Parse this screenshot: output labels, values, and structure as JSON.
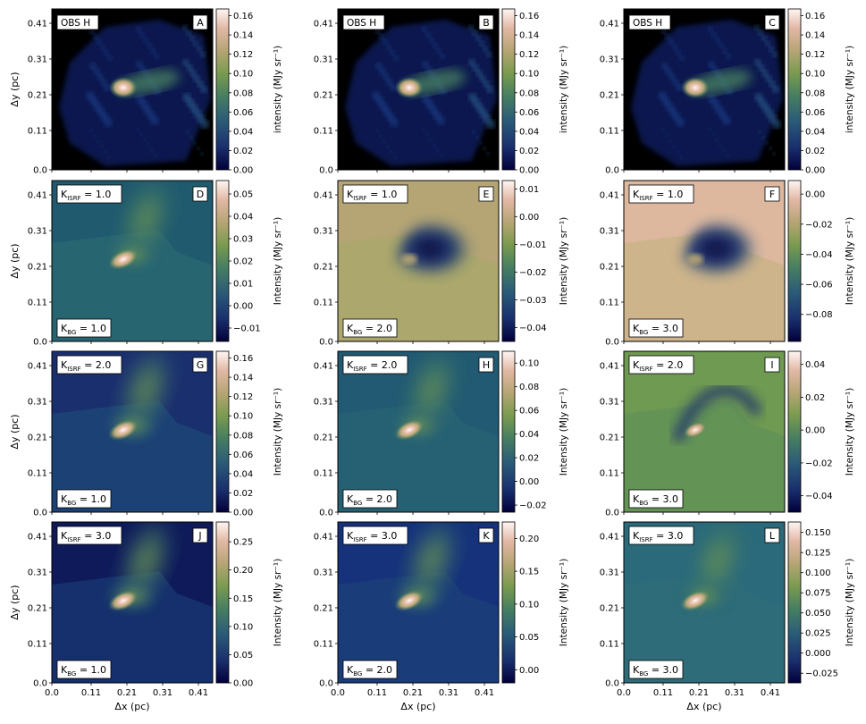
{
  "figure": {
    "xlabel": "Δx (pc)",
    "ylabel": "Δy (pc)"
  },
  "chart_data": {
    "type": "heatmap",
    "xlabel": "Δx (pc)",
    "ylabel": "Δy (pc)",
    "xlim": [
      0.0,
      0.45
    ],
    "ylim": [
      0.0,
      0.45
    ],
    "x_ticks": [
      "0.0",
      "0.11",
      "0.21",
      "0.31",
      "0.41"
    ],
    "y_ticks": [
      "0.0",
      "0.11",
      "0.21",
      "0.31",
      "0.41"
    ],
    "x_tick_values": [
      0.0,
      0.11,
      0.21,
      0.31,
      0.41
    ],
    "y_tick_values": [
      0.0,
      0.11,
      0.21,
      0.31,
      0.41
    ],
    "colormap": [
      "#02003a",
      "#1a2f6e",
      "#2a5a78",
      "#467f61",
      "#7a9b4e",
      "#b5a574",
      "#e2b8a4",
      "#fff6f3"
    ],
    "panels": [
      {
        "letter": "A",
        "obs_label": "OBS H",
        "cbar_label": "intensity (MJy sr⁻¹)",
        "vmin": 0.0,
        "vmax": 0.167,
        "ticks": [
          0.0,
          0.02,
          0.04,
          0.06,
          0.08,
          0.1,
          0.12,
          0.14,
          0.16
        ],
        "tick_labels": [
          "0.00",
          "0.02",
          "0.04",
          "0.06",
          "0.08",
          "0.10",
          "0.12",
          "0.14",
          "0.16"
        ],
        "bg": "#000000",
        "kind": "obs"
      },
      {
        "letter": "B",
        "obs_label": "OBS H",
        "cbar_label": "intensity (MJy sr⁻¹)",
        "vmin": 0.0,
        "vmax": 0.167,
        "ticks": [
          0.0,
          0.02,
          0.04,
          0.06,
          0.08,
          0.1,
          0.12,
          0.14,
          0.16
        ],
        "tick_labels": [
          "0.00",
          "0.02",
          "0.04",
          "0.06",
          "0.08",
          "0.10",
          "0.12",
          "0.14",
          "0.16"
        ],
        "bg": "#000000",
        "kind": "obs"
      },
      {
        "letter": "C",
        "obs_label": "OBS H",
        "cbar_label": "intensity (MJy sr⁻¹)",
        "vmin": 0.0,
        "vmax": 0.167,
        "ticks": [
          0.0,
          0.02,
          0.04,
          0.06,
          0.08,
          0.1,
          0.12,
          0.14,
          0.16
        ],
        "tick_labels": [
          "0.00",
          "0.02",
          "0.04",
          "0.06",
          "0.08",
          "0.10",
          "0.12",
          "0.14",
          "0.16"
        ],
        "bg": "#000000",
        "kind": "obs"
      },
      {
        "letter": "D",
        "k_isrf": "1.0",
        "k_bg": "1.0",
        "cbar_label": "Intensity (MJy sr⁻¹)",
        "vmin": -0.016,
        "vmax": 0.056,
        "ticks": [
          -0.01,
          0.0,
          0.01,
          0.02,
          0.03,
          0.04,
          0.05
        ],
        "tick_labels": [
          "−0.01",
          "0.00",
          "0.01",
          "0.02",
          "0.03",
          "0.04",
          "0.05"
        ],
        "bg": "#1f5a6e",
        "field": "#2b6a72",
        "kind": "model"
      },
      {
        "letter": "E",
        "k_isrf": "1.0",
        "k_bg": "2.0",
        "cbar_label": "Intensity (MJy sr⁻¹)",
        "vmin": -0.045,
        "vmax": 0.013,
        "ticks": [
          -0.04,
          -0.03,
          -0.02,
          -0.01,
          0.0,
          0.01
        ],
        "tick_labels": [
          "−0.04",
          "−0.03",
          "−0.02",
          "−0.01",
          "0.00",
          "0.01"
        ],
        "bg": "#b5a574",
        "field": "#a8a86a",
        "kind": "negative"
      },
      {
        "letter": "F",
        "k_isrf": "1.0",
        "k_bg": "3.0",
        "cbar_label": "Intensity (MJy sr⁻¹)",
        "vmin": -0.098,
        "vmax": 0.009,
        "ticks": [
          -0.08,
          -0.06,
          -0.04,
          -0.02,
          0.0
        ],
        "tick_labels": [
          "−0.08",
          "−0.06",
          "−0.04",
          "−0.02",
          "0.00"
        ],
        "bg": "#ddb89f",
        "field": "#c7b283",
        "kind": "negative"
      },
      {
        "letter": "G",
        "k_isrf": "2.0",
        "k_bg": "1.0",
        "cbar_label": "Intensity (MJy sr⁻¹)",
        "vmin": 0.0,
        "vmax": 0.167,
        "ticks": [
          0.0,
          0.02,
          0.04,
          0.06,
          0.08,
          0.1,
          0.12,
          0.14,
          0.16
        ],
        "tick_labels": [
          "0.00",
          "0.02",
          "0.04",
          "0.06",
          "0.08",
          "0.10",
          "0.12",
          "0.14",
          "0.16"
        ],
        "bg": "#1a2f6e",
        "field": "#1e4878",
        "kind": "model"
      },
      {
        "letter": "H",
        "k_isrf": "2.0",
        "k_bg": "2.0",
        "cbar_label": "Intensity (MJy sr⁻¹)",
        "vmin": -0.026,
        "vmax": 0.11,
        "ticks": [
          -0.02,
          0.0,
          0.02,
          0.04,
          0.06,
          0.08,
          0.1
        ],
        "tick_labels": [
          "−0.02",
          "0.00",
          "0.02",
          "0.04",
          "0.06",
          "0.08",
          "0.10"
        ],
        "bg": "#215a72",
        "field": "#2a6474",
        "kind": "model"
      },
      {
        "letter": "I",
        "k_isrf": "2.0",
        "k_bg": "3.0",
        "cbar_label": "Intensity (MJy sr⁻¹)",
        "vmin": -0.05,
        "vmax": 0.048,
        "ticks": [
          -0.04,
          -0.02,
          0.0,
          0.02,
          0.04
        ],
        "tick_labels": [
          "−0.04",
          "−0.02",
          "0.00",
          "0.02",
          "0.04"
        ],
        "bg": "#6f9a52",
        "field": "#5f9058",
        "kind": "mixed"
      },
      {
        "letter": "J",
        "k_isrf": "3.0",
        "k_bg": "1.0",
        "cbar_label": "Intensity (MJy sr⁻¹)",
        "vmin": 0.0,
        "vmax": 0.285,
        "ticks": [
          0.0,
          0.05,
          0.1,
          0.15,
          0.2,
          0.25
        ],
        "tick_labels": [
          "0.00",
          "0.05",
          "0.10",
          "0.15",
          "0.20",
          "0.25"
        ],
        "bg": "#0e1a5a",
        "field": "#183a74",
        "kind": "model"
      },
      {
        "letter": "K",
        "k_isrf": "3.0",
        "k_bg": "2.0",
        "cbar_label": "Intensity (MJy sr⁻¹)",
        "vmin": -0.02,
        "vmax": 0.225,
        "ticks": [
          0.0,
          0.05,
          0.1,
          0.15,
          0.2
        ],
        "tick_labels": [
          "0.00",
          "0.05",
          "0.10",
          "0.15",
          "0.20"
        ],
        "bg": "#15327a",
        "field": "#1c4078",
        "kind": "model"
      },
      {
        "letter": "L",
        "k_isrf": "3.0",
        "k_bg": "3.0",
        "cbar_label": "Intensity (MJy sr⁻¹)",
        "vmin": -0.037,
        "vmax": 0.163,
        "ticks": [
          -0.025,
          0.0,
          0.025,
          0.05,
          0.075,
          0.1,
          0.125,
          0.15
        ],
        "tick_labels": [
          "−0.025",
          "0.000",
          "0.025",
          "0.050",
          "0.075",
          "0.100",
          "0.125",
          "0.150"
        ],
        "bg": "#2a6a7a",
        "field": "#2f6e78",
        "kind": "model"
      }
    ]
  }
}
